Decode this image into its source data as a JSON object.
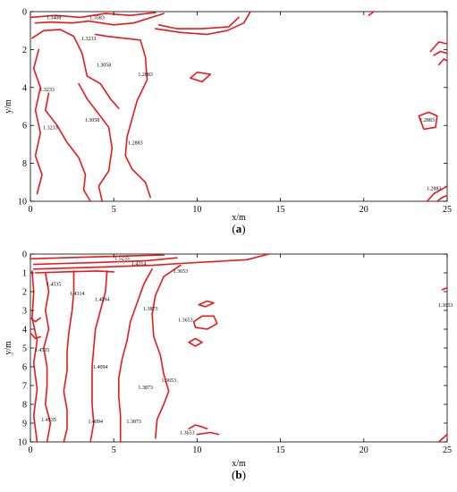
{
  "chart_data": [
    {
      "type": "contour",
      "panel_label": "a",
      "xlabel": "x/m",
      "ylabel": "y/m",
      "xlim": [
        0,
        25
      ],
      "ylim": [
        10,
        0
      ],
      "y_axis_inverted": true,
      "xticks": [
        0,
        5,
        10,
        15,
        20,
        25
      ],
      "yticks": [
        0,
        2,
        4,
        6,
        8,
        10
      ],
      "line_color": "#e8191b",
      "contour_labels": [
        {
          "text": "1.3408",
          "x": 1.4,
          "y": 0.4
        },
        {
          "text": "1.3233",
          "x": 1.0,
          "y": 4.2
        },
        {
          "text": "1.3233",
          "x": 3.5,
          "y": 1.5
        },
        {
          "text": "1.3058",
          "x": 4.4,
          "y": 2.9
        },
        {
          "text": "1.2883",
          "x": 6.9,
          "y": 3.4
        },
        {
          "text": "1.3583",
          "x": 4.0,
          "y": 0.4
        },
        {
          "text": "1.3058",
          "x": 3.7,
          "y": 5.8
        },
        {
          "text": "1.2883",
          "x": 6.3,
          "y": 7.0
        },
        {
          "text": "1.2883",
          "x": 23.8,
          "y": 5.8
        },
        {
          "text": "1.2883",
          "x": 24.2,
          "y": 9.4
        },
        {
          "text": "1.3233",
          "x": 1.2,
          "y": 6.2
        }
      ],
      "contours": [
        [
          [
            0,
            0.3
          ],
          [
            1.5,
            0.2
          ],
          [
            3,
            0.3
          ],
          [
            4.5,
            0.1
          ],
          [
            6,
            0.2
          ],
          [
            7.5,
            0.05
          ]
        ],
        [
          [
            0.3,
            0.6
          ],
          [
            1.2,
            0.55
          ],
          [
            2.5,
            0.6
          ],
          [
            3.5,
            0.5
          ],
          [
            5,
            0.7
          ],
          [
            6.2,
            0.6
          ],
          [
            8,
            0.1
          ]
        ],
        [
          [
            0.1,
            1.4
          ],
          [
            0.8,
            1.0
          ],
          [
            1.8,
            0.95
          ],
          [
            2.6,
            1.3
          ],
          [
            3.1,
            2.2
          ],
          [
            3.4,
            3.4
          ],
          [
            4.2,
            3.8
          ],
          [
            4.8,
            4.6
          ],
          [
            5.3,
            5.1
          ]
        ],
        [
          [
            1.1,
            4.3
          ],
          [
            0.9,
            5.2
          ],
          [
            1.6,
            6.0
          ],
          [
            2.2,
            6.9
          ],
          [
            2.9,
            7.7
          ],
          [
            3.3,
            8.6
          ],
          [
            3.2,
            9.4
          ],
          [
            3.6,
            10
          ]
        ],
        [
          [
            3.9,
            1.2
          ],
          [
            4.6,
            1.3
          ],
          [
            5.6,
            1.4
          ],
          [
            6.6,
            1.5
          ],
          [
            6.9,
            2.4
          ],
          [
            7.0,
            3.6
          ],
          [
            6.4,
            4.7
          ],
          [
            5.8,
            6.6
          ],
          [
            5.7,
            7.6
          ],
          [
            6.1,
            8.3
          ],
          [
            6.9,
            9.0
          ],
          [
            7.2,
            9.8
          ]
        ],
        [
          [
            2.9,
            3.8
          ],
          [
            3.4,
            4.6
          ],
          [
            4.1,
            5.4
          ],
          [
            4.7,
            6.1
          ],
          [
            4.9,
            7.2
          ],
          [
            4.7,
            8.4
          ],
          [
            4.1,
            9.2
          ],
          [
            4.3,
            10
          ]
        ],
        [
          [
            7.5,
            0.9
          ],
          [
            9.0,
            1.1
          ],
          [
            10.6,
            1.2
          ],
          [
            11.8,
            1.0
          ],
          [
            12.8,
            0.6
          ],
          [
            13.2,
            0.0
          ]
        ],
        [
          [
            7.7,
            0.7
          ],
          [
            8.8,
            0.9
          ],
          [
            10.3,
            0.9
          ],
          [
            11.9,
            0.8
          ],
          [
            12.5,
            0.3
          ]
        ],
        [
          [
            0.5,
            2.0
          ],
          [
            0.2,
            3.0
          ],
          [
            0.6,
            4.0
          ],
          [
            0.3,
            5.2
          ],
          [
            0.6,
            6.4
          ],
          [
            0.3,
            7.6
          ],
          [
            0.7,
            8.6
          ],
          [
            0.4,
            9.6
          ]
        ],
        [
          [
            9.6,
            3.5
          ],
          [
            10.0,
            3.2
          ],
          [
            10.8,
            3.3
          ],
          [
            10.3,
            3.7
          ],
          [
            9.6,
            3.5
          ]
        ],
        [
          [
            23.3,
            5.5
          ],
          [
            23.9,
            5.3
          ],
          [
            24.4,
            5.5
          ],
          [
            24.3,
            6.1
          ],
          [
            23.6,
            6.2
          ],
          [
            23.3,
            5.5
          ]
        ],
        [
          [
            24.0,
            2.1
          ],
          [
            24.5,
            1.6
          ],
          [
            25.0,
            1.7
          ]
        ],
        [
          [
            24.2,
            2.3
          ],
          [
            24.6,
            2.1
          ],
          [
            25.0,
            2.2
          ]
        ],
        [
          [
            24.5,
            2.8
          ],
          [
            24.8,
            2.5
          ],
          [
            25.0,
            2.6
          ]
        ],
        [
          [
            20.3,
            0.2
          ],
          [
            20.6,
            0.0
          ]
        ],
        [
          [
            23.8,
            10.0
          ],
          [
            24.2,
            9.6
          ],
          [
            24.8,
            9.3
          ],
          [
            25,
            9.2
          ]
        ],
        [
          [
            24.4,
            10.0
          ],
          [
            24.7,
            9.8
          ],
          [
            25,
            9.7
          ]
        ]
      ]
    },
    {
      "type": "contour",
      "panel_label": "b",
      "xlabel": "x/m",
      "ylabel": "y/m",
      "xlim": [
        0,
        25
      ],
      "ylim": [
        10,
        0
      ],
      "y_axis_inverted": true,
      "xticks": [
        0,
        5,
        10,
        15,
        20,
        25
      ],
      "yticks": [
        0,
        1,
        2,
        3,
        4,
        5,
        6,
        7,
        8,
        9,
        10
      ],
      "line_color": "#e8191b",
      "contour_labels": [
        {
          "text": "1.5235",
          "x": 5.5,
          "y": 0.3
        },
        {
          "text": "1.4314",
          "x": 6.5,
          "y": 0.6
        },
        {
          "text": "1.4535",
          "x": 1.4,
          "y": 1.7
        },
        {
          "text": "1.4314",
          "x": 2.8,
          "y": 2.2
        },
        {
          "text": "1.4094",
          "x": 4.3,
          "y": 2.5
        },
        {
          "text": "1.3873",
          "x": 7.2,
          "y": 3.0
        },
        {
          "text": "1.3653",
          "x": 9.0,
          "y": 1.0
        },
        {
          "text": "1.3653",
          "x": 9.3,
          "y": 3.6
        },
        {
          "text": "1.3653",
          "x": 24.9,
          "y": 2.8
        },
        {
          "text": "1.4094",
          "x": 4.2,
          "y": 6.1
        },
        {
          "text": "1.3873",
          "x": 6.9,
          "y": 7.2
        },
        {
          "text": "1.3653",
          "x": 8.3,
          "y": 6.8
        },
        {
          "text": "1.4535",
          "x": 0.7,
          "y": 5.2
        },
        {
          "text": "1.4535",
          "x": 1.1,
          "y": 8.9
        },
        {
          "text": "1.4094",
          "x": 3.9,
          "y": 9.0
        },
        {
          "text": "1.3873",
          "x": 6.2,
          "y": 9.0
        },
        {
          "text": "1.3653",
          "x": 9.4,
          "y": 9.6
        }
      ],
      "contours": [
        [
          [
            0,
            0.25
          ],
          [
            2,
            0.2
          ],
          [
            4,
            0.15
          ],
          [
            6,
            0.1
          ],
          [
            8,
            0.05
          ]
        ],
        [
          [
            0.2,
            0.55
          ],
          [
            2,
            0.5
          ],
          [
            4,
            0.45
          ],
          [
            5.5,
            0.4
          ],
          [
            7,
            0.35
          ],
          [
            8.8,
            0.2
          ]
        ],
        [
          [
            0.2,
            0.8
          ],
          [
            2,
            0.75
          ],
          [
            4,
            0.7
          ],
          [
            5.8,
            0.65
          ],
          [
            7.3,
            0.6
          ],
          [
            9,
            0.5
          ],
          [
            11,
            0.4
          ],
          [
            13,
            0.3
          ],
          [
            14.3,
            0.0
          ]
        ],
        [
          [
            0.3,
            1.0
          ],
          [
            2,
            0.95
          ],
          [
            4,
            0.9
          ],
          [
            5,
            0.95
          ]
        ],
        [
          [
            0.9,
            1.0
          ],
          [
            1.1,
            2.0
          ],
          [
            0.9,
            3.0
          ],
          [
            1.1,
            4.0
          ],
          [
            0.8,
            5.0
          ],
          [
            1.0,
            6.0
          ],
          [
            1.0,
            7.0
          ],
          [
            0.9,
            8.0
          ],
          [
            1.2,
            9.0
          ],
          [
            1.0,
            10
          ]
        ],
        [
          [
            2.6,
            0.9
          ],
          [
            2.6,
            2.0
          ],
          [
            2.5,
            3.0
          ],
          [
            2.3,
            4.2
          ],
          [
            2.2,
            5.2
          ],
          [
            2.2,
            6.2
          ],
          [
            2.0,
            7.3
          ],
          [
            2.2,
            8.3
          ],
          [
            2.2,
            9.3
          ],
          [
            2.0,
            10
          ]
        ],
        [
          [
            4.6,
            0.9
          ],
          [
            4.5,
            2.0
          ],
          [
            4.2,
            3.0
          ],
          [
            3.9,
            4.0
          ],
          [
            3.8,
            5.0
          ],
          [
            3.7,
            6.0
          ],
          [
            3.7,
            7.0
          ],
          [
            3.7,
            8.0
          ],
          [
            3.8,
            9.0
          ],
          [
            3.6,
            10
          ]
        ],
        [
          [
            7.3,
            0.8
          ],
          [
            6.8,
            1.6
          ],
          [
            6.4,
            2.6
          ],
          [
            6.0,
            3.6
          ],
          [
            5.8,
            4.6
          ],
          [
            5.5,
            5.6
          ],
          [
            5.3,
            6.6
          ],
          [
            5.3,
            7.6
          ],
          [
            5.4,
            8.6
          ],
          [
            5.4,
            10
          ]
        ],
        [
          [
            9.0,
            0.6
          ],
          [
            8.0,
            1.2
          ],
          [
            7.5,
            2.2
          ],
          [
            7.3,
            3.2
          ],
          [
            7.4,
            4.4
          ],
          [
            7.8,
            5.4
          ],
          [
            8.0,
            6.4
          ],
          [
            8.3,
            7.3
          ],
          [
            8.0,
            8.0
          ],
          [
            7.6,
            8.8
          ],
          [
            7.5,
            9.8
          ]
        ],
        [
          [
            0.1,
            0.9
          ],
          [
            0.2,
            2.0
          ],
          [
            0.1,
            3.4
          ],
          [
            0.4,
            4.6
          ],
          [
            0.2,
            5.8
          ],
          [
            0.4,
            7.2
          ],
          [
            0.2,
            8.6
          ],
          [
            0.4,
            10
          ]
        ],
        [
          [
            10.1,
            2.7
          ],
          [
            10.6,
            2.5
          ],
          [
            11.0,
            2.6
          ],
          [
            10.5,
            2.8
          ],
          [
            10.1,
            2.7
          ]
        ],
        [
          [
            9.8,
            3.6
          ],
          [
            10.3,
            3.3
          ],
          [
            11.0,
            3.3
          ],
          [
            11.2,
            3.7
          ],
          [
            10.6,
            4.0
          ],
          [
            9.9,
            3.9
          ],
          [
            9.8,
            3.6
          ]
        ],
        [
          [
            9.5,
            4.7
          ],
          [
            9.9,
            4.5
          ],
          [
            10.3,
            4.7
          ],
          [
            9.9,
            4.9
          ],
          [
            9.5,
            4.7
          ]
        ],
        [
          [
            9.5,
            9.3
          ],
          [
            9.9,
            9.1
          ],
          [
            10.3,
            9.2
          ],
          [
            10.6,
            9.3
          ]
        ],
        [
          [
            10.0,
            9.6
          ],
          [
            10.8,
            9.5
          ],
          [
            11.3,
            9.6
          ]
        ],
        [
          [
            0,
            3.4
          ],
          [
            0.3,
            3.6
          ],
          [
            0.6,
            3.4
          ]
        ],
        [
          [
            0,
            4.2
          ],
          [
            0.3,
            4.5
          ],
          [
            0.6,
            4.4
          ]
        ],
        [
          [
            24.7,
            1.9
          ],
          [
            25,
            1.8
          ]
        ],
        [
          [
            24.5,
            10
          ],
          [
            25,
            9.6
          ]
        ]
      ]
    }
  ]
}
